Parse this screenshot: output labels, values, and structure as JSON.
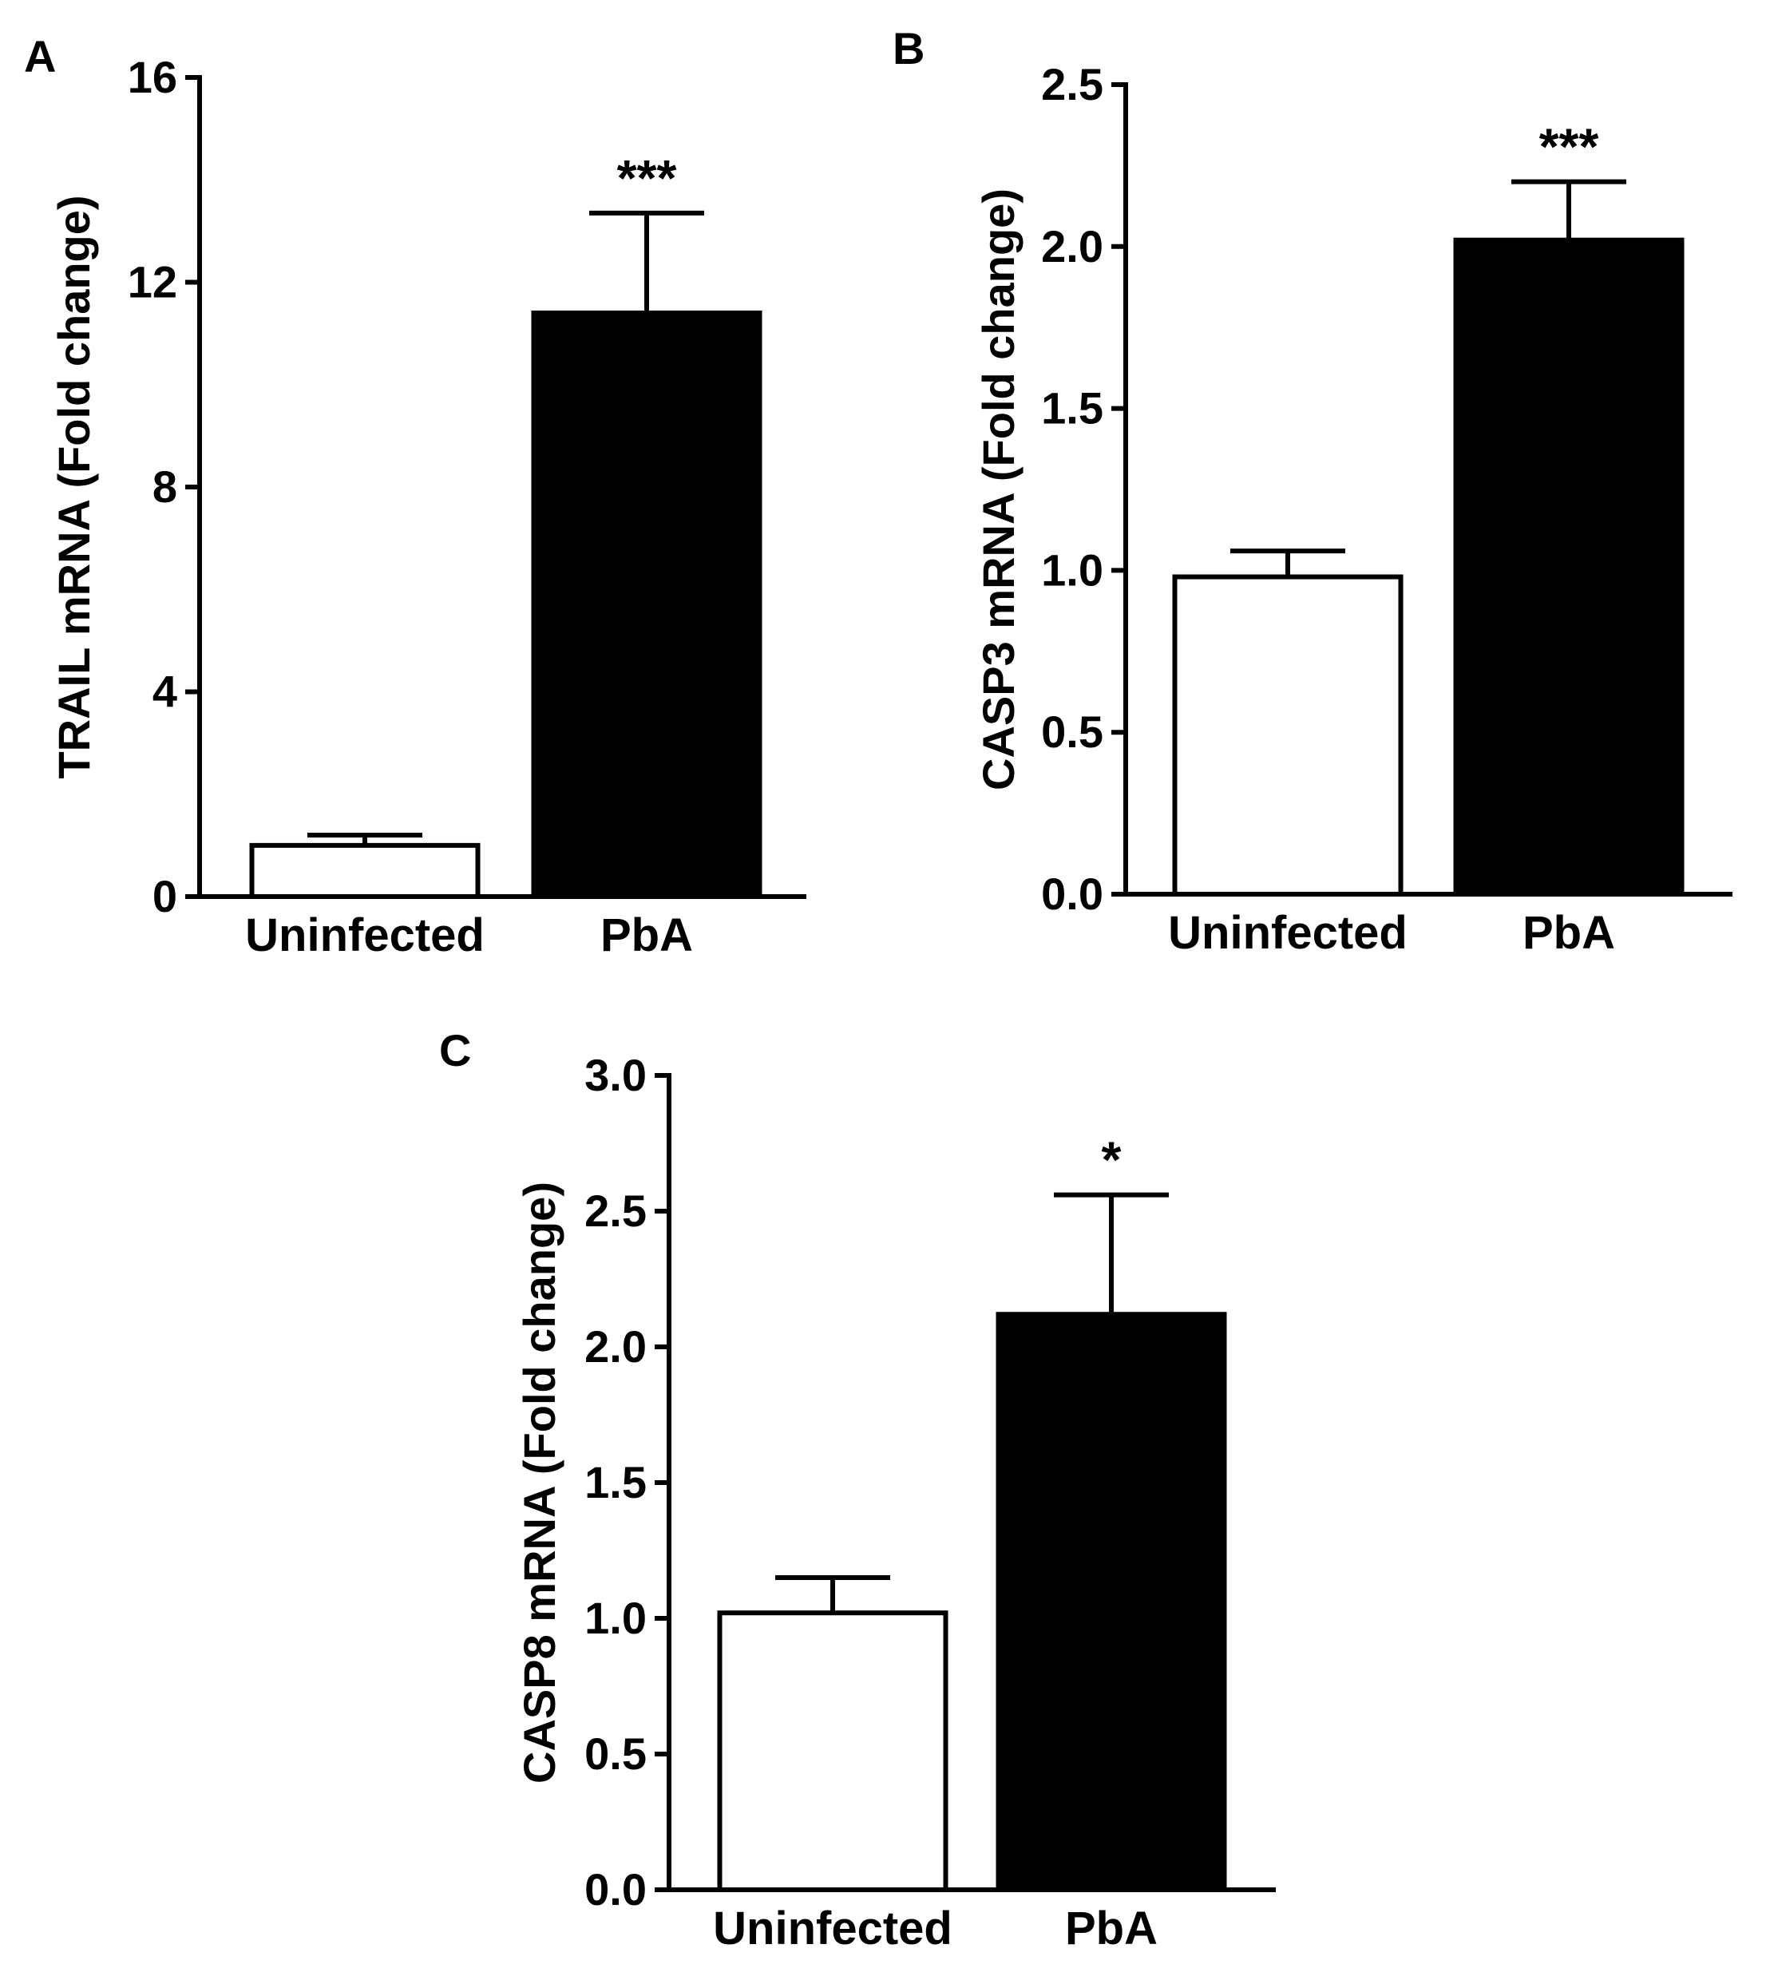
{
  "chart_data": [
    {
      "panel": "A",
      "type": "bar",
      "categories": [
        "Uninfected",
        "PbA"
      ],
      "values": [
        1.0,
        11.4
      ],
      "errors": [
        0.2,
        1.95
      ],
      "significance": [
        "",
        "***"
      ],
      "ylabel": "TRAIL mRNA (Fold change)",
      "xlabel": "",
      "ylim": [
        0,
        16
      ],
      "yticks": [
        0,
        4,
        8,
        12,
        16
      ],
      "ytick_labels": [
        "0",
        "4",
        "8",
        "12",
        "16"
      ],
      "colors": [
        "#ffffff",
        "#000000"
      ]
    },
    {
      "panel": "B",
      "type": "bar",
      "categories": [
        "Uninfected",
        "PbA"
      ],
      "values": [
        0.98,
        2.02
      ],
      "errors": [
        0.08,
        0.18
      ],
      "significance": [
        "",
        "***"
      ],
      "ylabel": "CASP3 mRNA (Fold change)",
      "xlabel": "",
      "ylim": [
        0,
        2.5
      ],
      "yticks": [
        0,
        0.5,
        1.0,
        1.5,
        2.0,
        2.5
      ],
      "ytick_labels": [
        "0.0",
        "0.5",
        "1.0",
        "1.5",
        "2.0",
        "2.5"
      ],
      "colors": [
        "#ffffff",
        "#000000"
      ]
    },
    {
      "panel": "C",
      "type": "bar",
      "categories": [
        "Uninfected",
        "PbA"
      ],
      "values": [
        1.02,
        2.12
      ],
      "errors": [
        0.13,
        0.44
      ],
      "significance": [
        "",
        "*"
      ],
      "ylabel": "CASP8 mRNA (Fold change)",
      "xlabel": "",
      "ylim": [
        0,
        3.0
      ],
      "yticks": [
        0,
        0.5,
        1.0,
        1.5,
        2.0,
        2.5,
        3.0
      ],
      "ytick_labels": [
        "0.0",
        "0.5",
        "1.0",
        "1.5",
        "2.0",
        "2.5",
        "3.0"
      ],
      "colors": [
        "#ffffff",
        "#000000"
      ]
    }
  ]
}
